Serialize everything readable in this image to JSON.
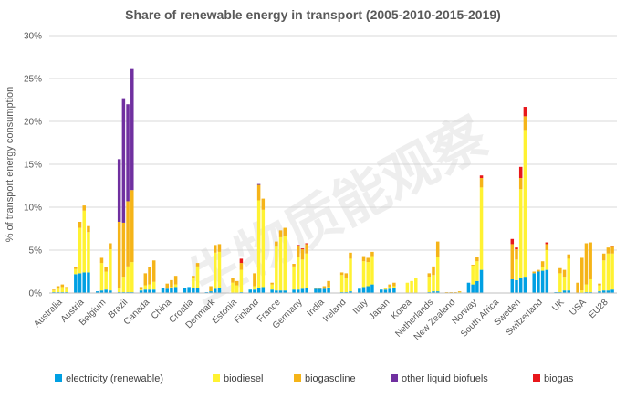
{
  "chart_data": {
    "type": "bar",
    "stacked": true,
    "title": "Share of renewable energy in transport (2005-2010-2015-2019)",
    "ylabel": "% of transport energy consumption",
    "ylim": [
      0,
      30
    ],
    "yticks": [
      "0%",
      "5%",
      "10%",
      "15%",
      "20%",
      "25%",
      "30%"
    ],
    "ytick_values": [
      0,
      5,
      10,
      15,
      20,
      25,
      30
    ],
    "grid": true,
    "legend_position": "bottom",
    "bars_per_country": 4,
    "watermark": "生物质能观察",
    "series": [
      {
        "name": "electricity (renewable)",
        "color": "#00a0e3"
      },
      {
        "name": "biodiesel",
        "color": "#fff232"
      },
      {
        "name": "biogasoline",
        "color": "#f5b418"
      },
      {
        "name": "other liquid biofuels",
        "color": "#7030a0"
      },
      {
        "name": "biogas",
        "color": "#e8171b"
      }
    ],
    "categories": [
      "Australia",
      "Austria",
      "Belgium",
      "Brazil",
      "Canada",
      "China",
      "Croatia",
      "Denmark",
      "Estonia",
      "Finland",
      "France",
      "Germany",
      "India",
      "Ireland",
      "Italy",
      "Japan",
      "Korea",
      "Netherlands",
      "New Zealand",
      "Norway",
      "South Africa",
      "Sweden",
      "Switzerland",
      "UK",
      "USA",
      "EU28"
    ],
    "data": [
      [
        [
          0.1,
          0.2,
          0.1,
          0,
          0
        ],
        [
          0.1,
          0.4,
          0.3,
          0,
          0
        ],
        [
          0.1,
          0.6,
          0.3,
          0,
          0
        ],
        [
          0.1,
          0.4,
          0.2,
          0,
          0
        ]
      ],
      [
        [
          2.2,
          0.6,
          0.2,
          0,
          0
        ],
        [
          2.3,
          5.3,
          0.7,
          0,
          0
        ],
        [
          2.4,
          7.2,
          0.6,
          0,
          0
        ],
        [
          2.4,
          4.7,
          0.7,
          0,
          0
        ]
      ],
      [
        [
          0.2,
          0,
          0,
          0,
          0
        ],
        [
          0.3,
          3.2,
          0.6,
          0,
          0
        ],
        [
          0.4,
          2.1,
          0.5,
          0,
          0
        ],
        [
          0.3,
          4.8,
          0.7,
          0,
          0
        ]
      ],
      [
        [
          0.1,
          0.5,
          7.7,
          7.3,
          0
        ],
        [
          0.1,
          1.8,
          6.3,
          14.5,
          0
        ],
        [
          0.1,
          3.0,
          7.6,
          11.3,
          0
        ],
        [
          0.1,
          3.5,
          8.4,
          14.1,
          0
        ]
      ],
      [
        [
          0.3,
          0.1,
          0.3,
          0,
          0
        ],
        [
          0.4,
          0.5,
          1.4,
          0,
          0
        ],
        [
          0.4,
          0.6,
          2.0,
          0,
          0
        ],
        [
          0.4,
          0.9,
          2.5,
          0,
          0
        ]
      ],
      [
        [
          0.6,
          0,
          0,
          0,
          0
        ],
        [
          0.5,
          0,
          0.6,
          0,
          0
        ],
        [
          0.6,
          0.1,
          0.8,
          0,
          0
        ],
        [
          0.7,
          0.3,
          1.0,
          0,
          0
        ]
      ],
      [
        [
          0.6,
          0,
          0,
          0,
          0
        ],
        [
          0.7,
          0,
          0,
          0,
          0
        ],
        [
          0.6,
          1.2,
          0.2,
          0,
          0
        ],
        [
          0.6,
          2.5,
          0.4,
          0,
          0
        ]
      ],
      [
        [
          0.1,
          0,
          0,
          0,
          0
        ],
        [
          0.2,
          0,
          0.6,
          0,
          0
        ],
        [
          0.5,
          4.2,
          0.9,
          0,
          0
        ],
        [
          0.6,
          4.2,
          0.9,
          0,
          0
        ]
      ],
      [
        [
          0,
          0,
          0,
          0,
          0
        ],
        [
          0,
          1.2,
          0.5,
          0,
          0
        ],
        [
          0,
          0.9,
          0.5,
          0,
          0
        ],
        [
          0.1,
          2.6,
          0.8,
          0,
          0.5
        ]
      ],
      [
        [
          0.4,
          0,
          0,
          0,
          0
        ],
        [
          0.4,
          0.4,
          1.5,
          0,
          0
        ],
        [
          0.6,
          10.2,
          1.8,
          0.1,
          0
        ],
        [
          0.7,
          9.0,
          1.3,
          0,
          0
        ]
      ],
      [
        [
          0.4,
          0.6,
          0.2,
          0,
          0
        ],
        [
          0.3,
          5.1,
          0.6,
          0,
          0
        ],
        [
          0.3,
          6.2,
          0.8,
          0,
          0
        ],
        [
          0.3,
          6.3,
          1.0,
          0,
          0
        ]
      ],
      [
        [
          0.4,
          2.7,
          0.3,
          0,
          0
        ],
        [
          0.4,
          3.8,
          1.3,
          0,
          0.1
        ],
        [
          0.5,
          3.4,
          1.2,
          0,
          0.1
        ],
        [
          0.6,
          4.0,
          1.1,
          0,
          0.1
        ]
      ],
      [
        [
          0.5,
          0,
          0.1,
          0,
          0
        ],
        [
          0.5,
          0,
          0.1,
          0,
          0
        ],
        [
          0.5,
          0,
          0.3,
          0,
          0
        ],
        [
          0.6,
          0.1,
          0.7,
          0,
          0
        ]
      ],
      [
        [
          0,
          0,
          0,
          0,
          0
        ],
        [
          0.1,
          2.0,
          0.3,
          0,
          0
        ],
        [
          0.1,
          1.7,
          0.5,
          0,
          0
        ],
        [
          0.2,
          3.8,
          0.7,
          0,
          0
        ]
      ],
      [
        [
          0.5,
          0,
          0,
          0,
          0
        ],
        [
          0.7,
          3.0,
          0.6,
          0,
          0
        ],
        [
          0.8,
          2.8,
          0.5,
          0,
          0
        ],
        [
          1.0,
          3.3,
          0.5,
          0,
          0
        ]
      ],
      [
        [
          0.4,
          0,
          0,
          0,
          0
        ],
        [
          0.4,
          0.1,
          0.1,
          0,
          0
        ],
        [
          0.5,
          0.2,
          0.3,
          0,
          0
        ],
        [
          0.6,
          0.2,
          0.4,
          0,
          0
        ]
      ],
      [
        [
          0,
          0,
          0,
          0,
          0
        ],
        [
          0,
          1.2,
          0,
          0,
          0
        ],
        [
          0,
          1.4,
          0,
          0,
          0
        ],
        [
          0,
          1.8,
          0,
          0,
          0
        ]
      ],
      [
        [
          0,
          0,
          0,
          0,
          0
        ],
        [
          0.1,
          1.8,
          0.4,
          0,
          0
        ],
        [
          0.2,
          1.9,
          1.0,
          0,
          0
        ],
        [
          0.2,
          4.0,
          1.8,
          0,
          0
        ]
      ],
      [
        [
          0,
          0,
          0.1,
          0,
          0
        ],
        [
          0,
          0,
          0.1,
          0,
          0
        ],
        [
          0,
          0,
          0.1,
          0,
          0
        ],
        [
          0,
          0.1,
          0.1,
          0,
          0
        ]
      ],
      [
        [
          1.2,
          0,
          0,
          0,
          0
        ],
        [
          1.0,
          2.2,
          0.1,
          0,
          0
        ],
        [
          1.4,
          2.3,
          0.5,
          0,
          0
        ],
        [
          2.7,
          9.6,
          1.1,
          0,
          0.3
        ]
      ],
      [
        [
          0,
          0,
          0,
          0,
          0
        ],
        [
          0,
          0,
          0,
          0,
          0
        ],
        [
          0,
          0,
          0,
          0,
          0
        ],
        [
          0,
          0,
          0,
          0,
          0
        ]
      ],
      [
        [
          1.6,
          0,
          4.1,
          0,
          0.6
        ],
        [
          1.5,
          2.4,
          1.2,
          0,
          0.2
        ],
        [
          1.8,
          10.3,
          1.3,
          0,
          1.3
        ],
        [
          1.9,
          17.1,
          1.6,
          0,
          1.1
        ]
      ],
      [
        [
          2.3,
          0,
          0.2,
          0,
          0
        ],
        [
          2.5,
          0,
          0.2,
          0,
          0
        ],
        [
          2.6,
          0.4,
          0.7,
          0,
          0
        ],
        [
          2.7,
          2.3,
          0.7,
          0,
          0.2
        ]
      ],
      [
        [
          0.1,
          0,
          0,
          0,
          0
        ],
        [
          0.1,
          2.2,
          0.6,
          0,
          0
        ],
        [
          0.3,
          1.6,
          0.8,
          0,
          0
        ],
        [
          0.3,
          3.7,
          0.5,
          0,
          0
        ]
      ],
      [
        [
          0,
          0,
          1.2,
          0,
          0
        ],
        [
          0,
          0.3,
          3.8,
          0,
          0
        ],
        [
          0.1,
          0.9,
          4.8,
          0,
          0
        ],
        [
          0.1,
          1.5,
          4.3,
          0,
          0
        ]
      ],
      [
        [
          0.2,
          0.7,
          0.2,
          0,
          0
        ],
        [
          0.3,
          3.5,
          0.8,
          0,
          0
        ],
        [
          0.3,
          4.3,
          0.7,
          0,
          0
        ],
        [
          0.4,
          4.2,
          0.8,
          0,
          0.1
        ]
      ]
    ]
  }
}
